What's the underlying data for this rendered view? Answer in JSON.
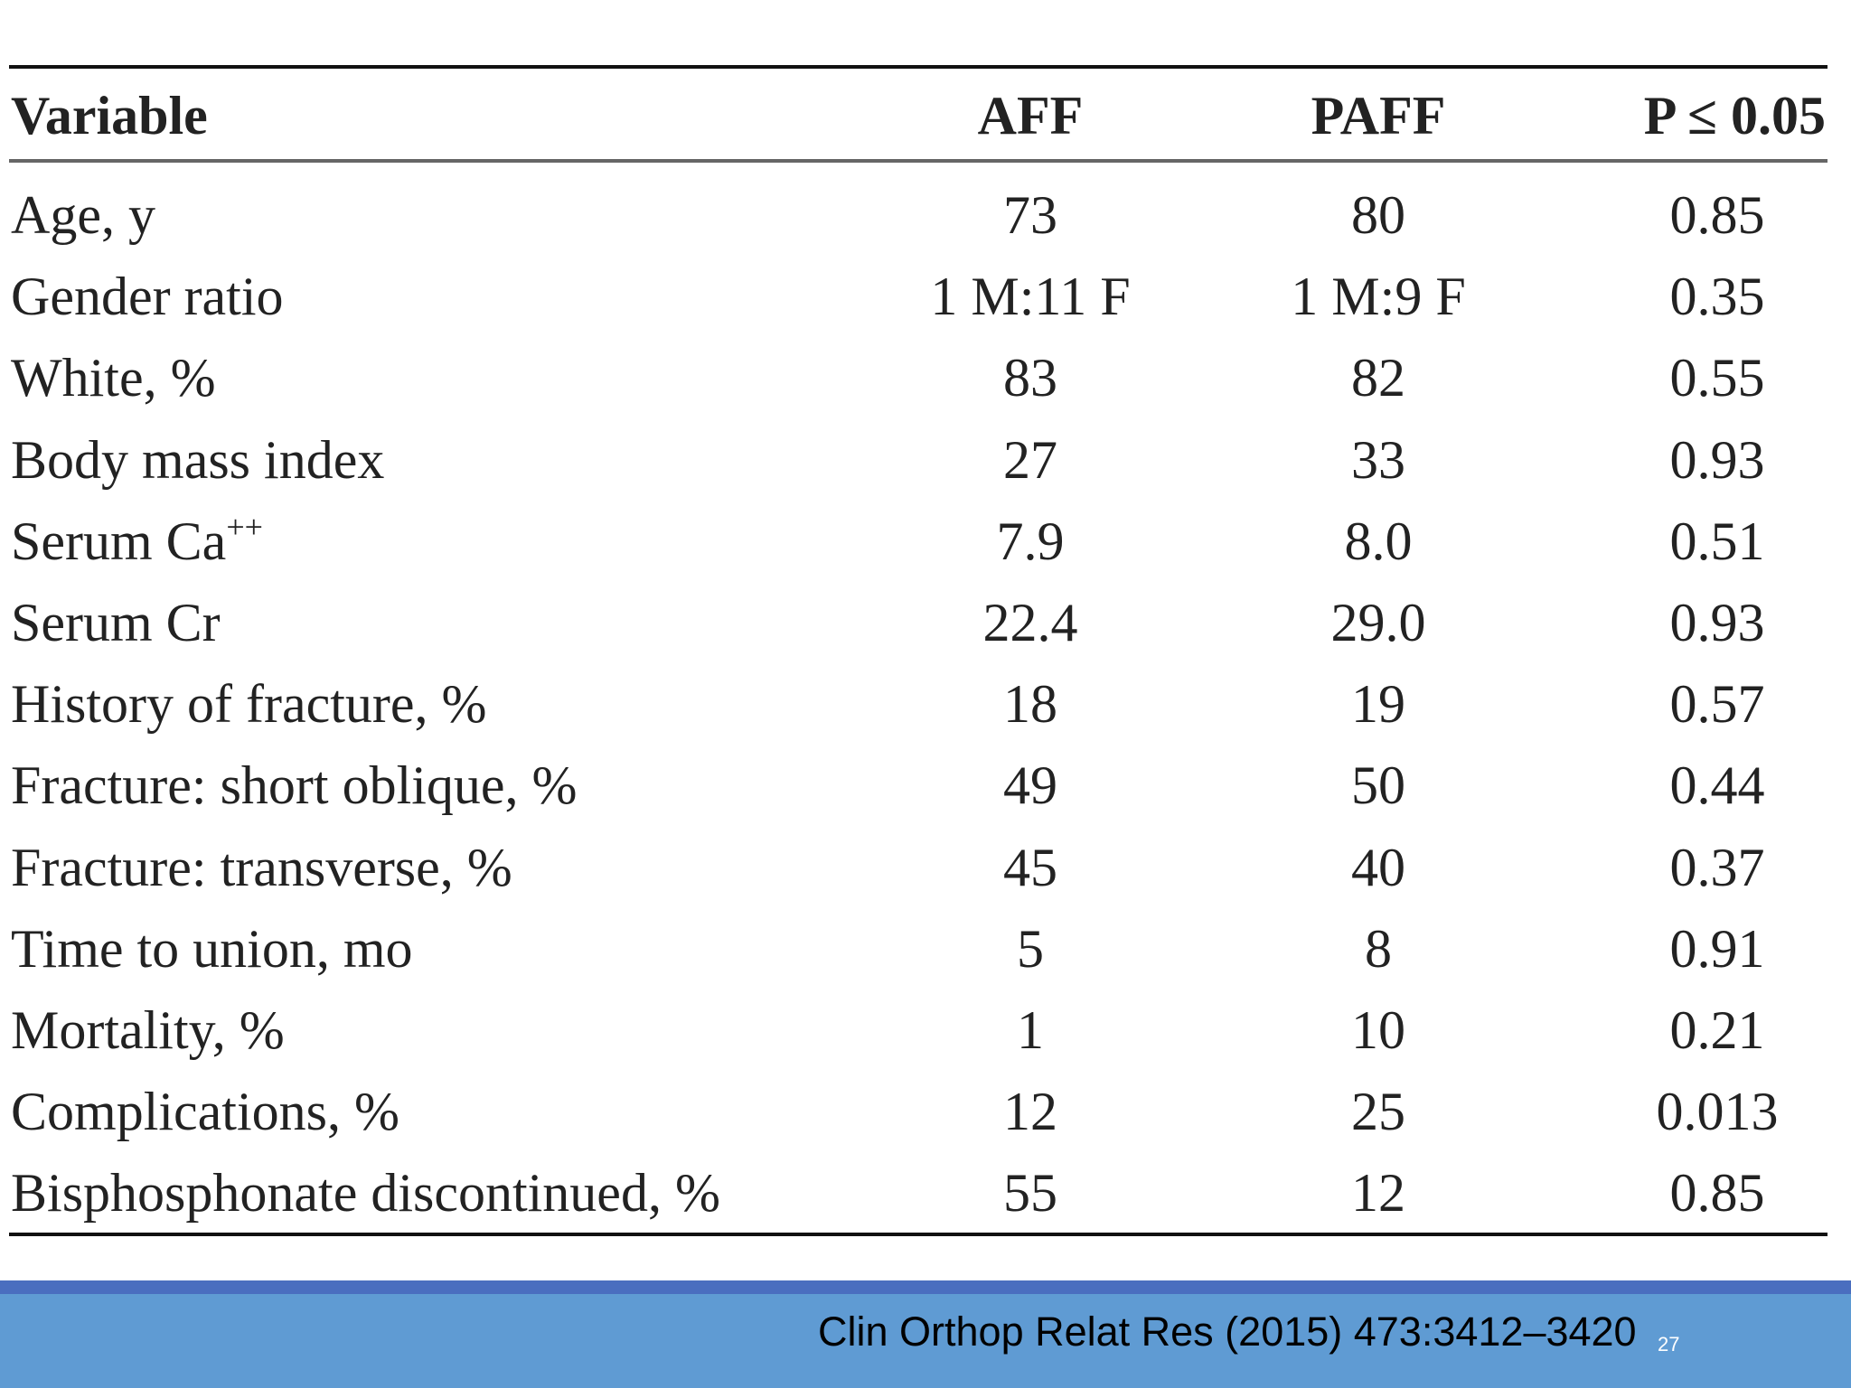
{
  "table": {
    "header": [
      "Variable",
      "AFF",
      "PAFF",
      "P ≤ 0.05"
    ],
    "rows": [
      [
        "Age, y",
        "73",
        "80",
        "0.85"
      ],
      [
        "Gender ratio",
        "1 M:11 F",
        "1 M:9 F",
        "0.35"
      ],
      [
        "White, %",
        "83",
        "82",
        "0.55"
      ],
      [
        "Body mass index",
        "27",
        "33",
        "0.93"
      ],
      [
        {
          "text": "Serum Ca",
          "superscript": "++"
        },
        "7.9",
        "8.0",
        "0.51"
      ],
      [
        "Serum Cr",
        "22.4",
        "29.0",
        "0.93"
      ],
      [
        "History of fracture, %",
        "18",
        "19",
        "0.57"
      ],
      [
        "Fracture: short oblique, %",
        "49",
        "50",
        "0.44"
      ],
      [
        "Fracture: transverse, %",
        "45",
        "40",
        "0.37"
      ],
      [
        "Time to union, mo",
        "5",
        "8",
        "0.91"
      ],
      [
        "Mortality, %",
        "1",
        "10",
        "0.21"
      ],
      [
        "Complications, %",
        "12",
        "25",
        "0.013"
      ],
      [
        "Bisphosphonate discontinued, %",
        "55",
        "12",
        "0.85"
      ]
    ]
  },
  "footer": {
    "citation": "Clin Orthop Relat Res (2015) 473:3412–3420",
    "slide_number": "27"
  }
}
